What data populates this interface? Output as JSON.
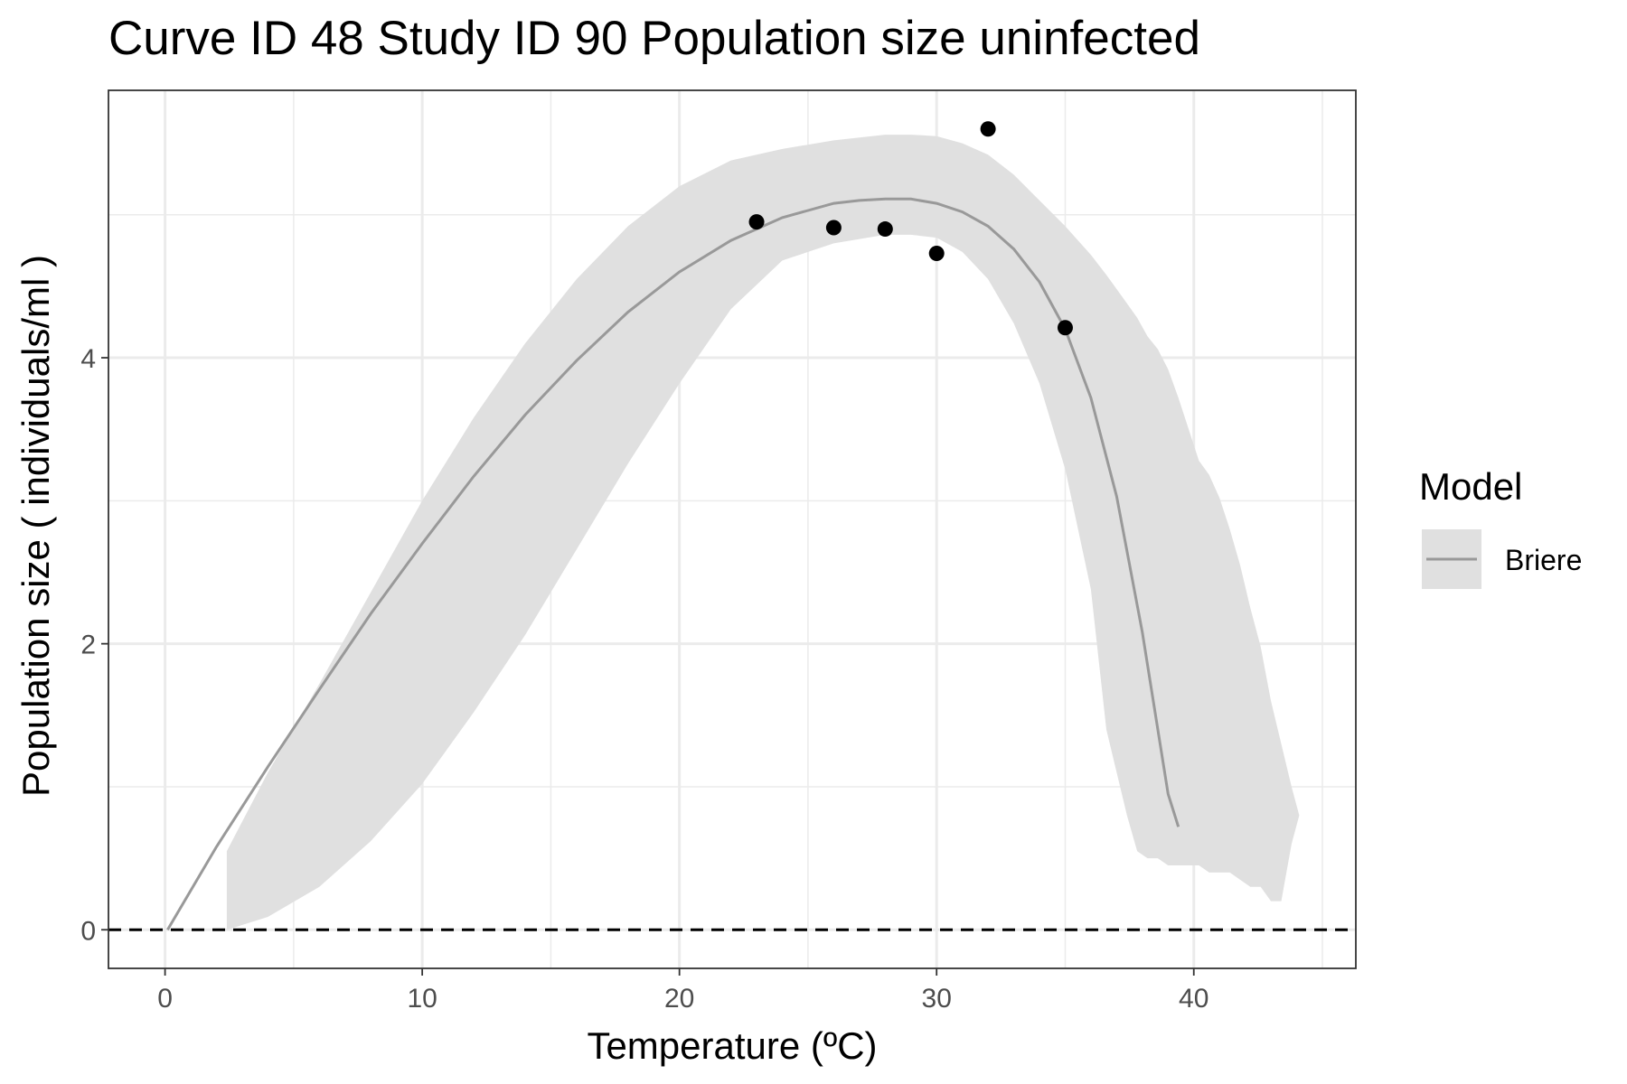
{
  "chart_data": {
    "type": "line",
    "title": "Curve ID 48 Study ID 90 Population size uninfected",
    "xlabel": "Temperature (ºC)",
    "ylabel": "Population size ( individuals/ml )",
    "xlim": [
      -2.2,
      46.3
    ],
    "ylim": [
      -0.27,
      5.87
    ],
    "x_ticks": [
      0,
      10,
      20,
      30,
      40
    ],
    "y_ticks": [
      0,
      2,
      4
    ],
    "grid": true,
    "reference_line": {
      "y": 0,
      "style": "dashed"
    },
    "legend": {
      "title": "Model",
      "position": "right",
      "entries": [
        "Briere"
      ]
    },
    "colors": {
      "line": "#999999",
      "band": "#e0e0e0",
      "points": "#000000",
      "grid": "#ebebeb"
    },
    "series": [
      {
        "name": "Briere",
        "kind": "line",
        "x": [
          0.1,
          2,
          4,
          6,
          8,
          10,
          12,
          14,
          16,
          18,
          20,
          22,
          24,
          26,
          27,
          28,
          29,
          30,
          31,
          32,
          33,
          34,
          35,
          36,
          37,
          38,
          39,
          39.4
        ],
        "y": [
          0,
          0.58,
          1.14,
          1.68,
          2.21,
          2.7,
          3.17,
          3.6,
          3.98,
          4.32,
          4.6,
          4.82,
          4.98,
          5.08,
          5.1,
          5.11,
          5.11,
          5.08,
          5.02,
          4.92,
          4.76,
          4.53,
          4.2,
          3.72,
          3.03,
          2.08,
          0.95,
          0.72
        ]
      },
      {
        "name": "",
        "kind": "band",
        "x": [
          2.4,
          4,
          6,
          8,
          10,
          12,
          14,
          16,
          18,
          20,
          22,
          24,
          26,
          28,
          29,
          30,
          31,
          32,
          33,
          34,
          35,
          36,
          36.6,
          37,
          37.4,
          37.8,
          38.2,
          38.6,
          39,
          39.4,
          39.8,
          40.2,
          40.6,
          41,
          41.4,
          41.8,
          42.2,
          42.6,
          43,
          43.4,
          43.8,
          44.1
        ],
        "y_lower": [
          0,
          0.09,
          0.3,
          0.62,
          1.02,
          1.52,
          2.06,
          2.66,
          3.26,
          3.82,
          4.34,
          4.68,
          4.8,
          4.86,
          4.86,
          4.84,
          4.74,
          4.55,
          4.24,
          3.82,
          3.22,
          2.38,
          1.4,
          1.1,
          0.8,
          0.55,
          0.5,
          0.5,
          0.45,
          0.45,
          0.45,
          0.45,
          0.4,
          0.4,
          0.4,
          0.35,
          0.3,
          0.3,
          0.2,
          0.2,
          0.6,
          0.8
        ],
        "y_upper": [
          0.55,
          1.1,
          1.72,
          2.36,
          3.0,
          3.58,
          4.1,
          4.55,
          4.92,
          5.2,
          5.38,
          5.46,
          5.52,
          5.56,
          5.56,
          5.55,
          5.5,
          5.42,
          5.28,
          5.1,
          4.92,
          4.72,
          4.58,
          4.48,
          4.38,
          4.28,
          4.15,
          4.06,
          3.92,
          3.72,
          3.5,
          3.28,
          3.18,
          3.02,
          2.8,
          2.55,
          2.25,
          1.98,
          1.6,
          1.3,
          1.0,
          0.8
        ]
      },
      {
        "name": "",
        "kind": "points",
        "x": [
          23,
          26,
          28,
          30,
          32,
          35
        ],
        "y": [
          4.95,
          4.91,
          4.9,
          4.73,
          5.6,
          4.21
        ]
      }
    ]
  }
}
